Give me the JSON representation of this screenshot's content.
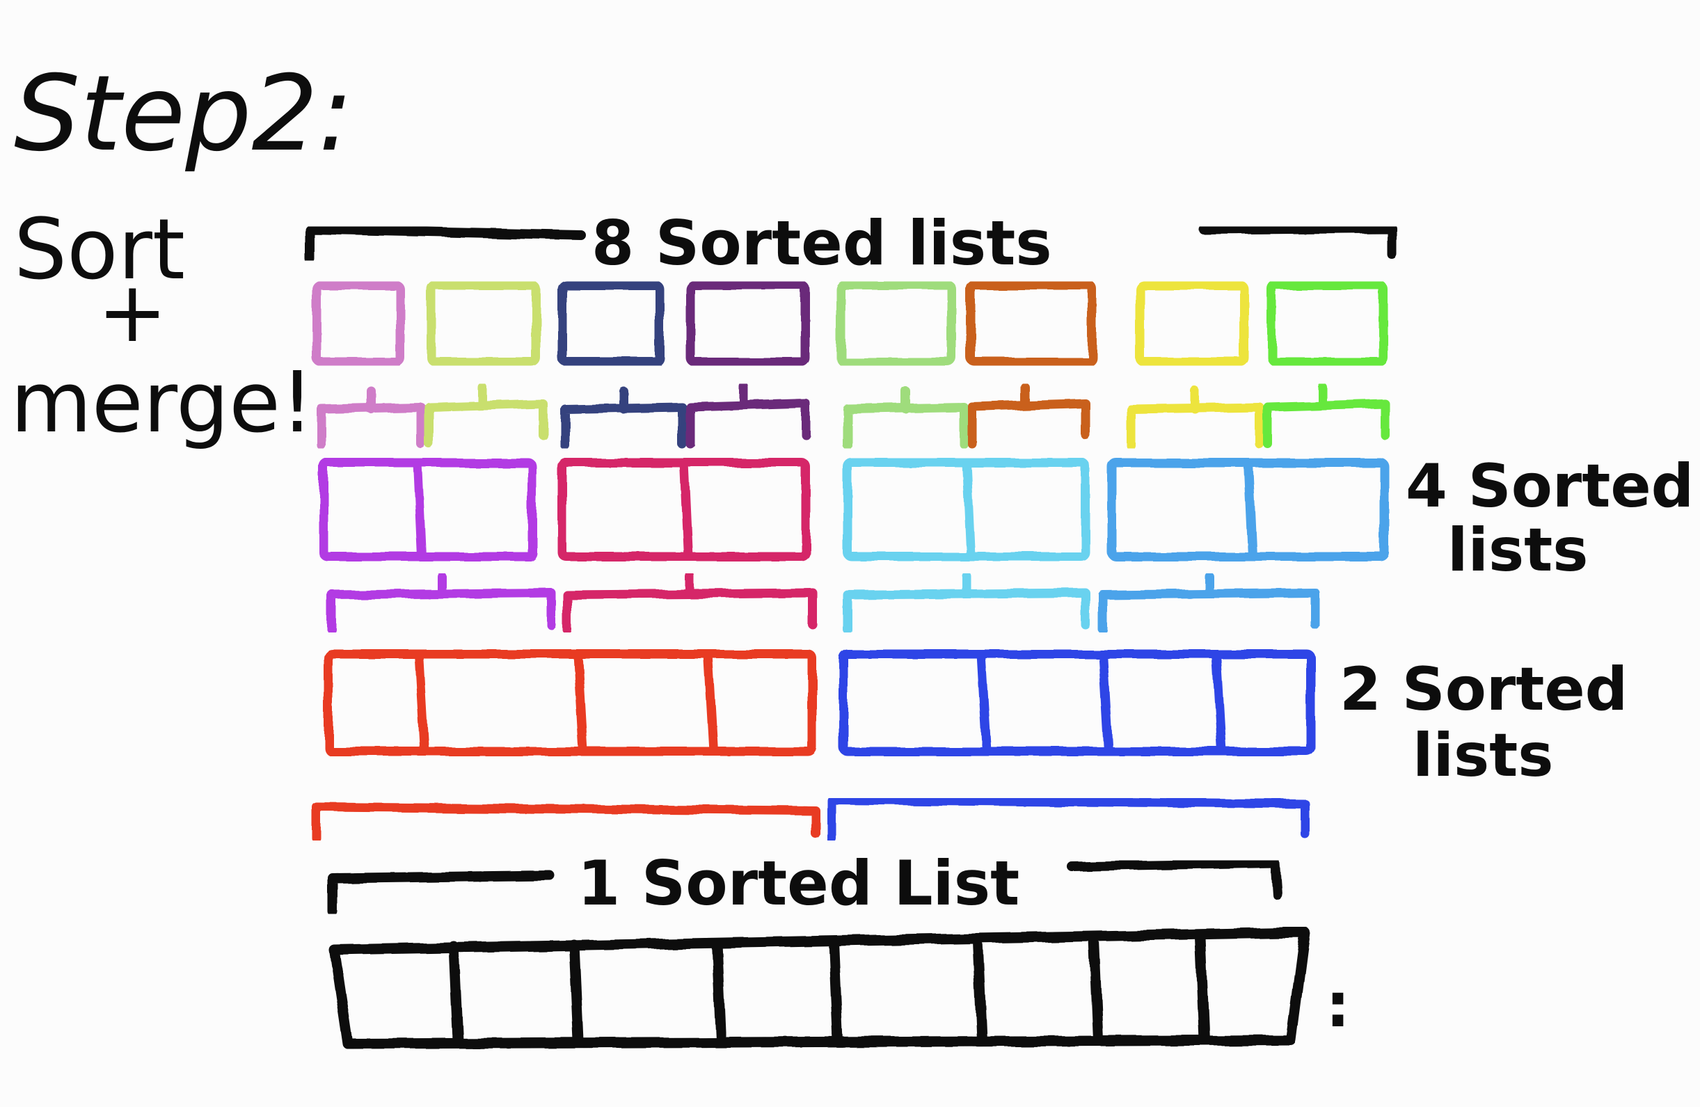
{
  "heading": {
    "step": "Step2:",
    "action_line1": "Sort",
    "action_line2": "+",
    "action_line3": "merge!"
  },
  "labels": {
    "eight": "8 Sorted lists",
    "four_line1": "4 Sorted",
    "four_line2": "lists",
    "two_line1": "2 Sorted",
    "two_line2": "lists",
    "one": "1 Sorted List",
    "ellipsis": ":"
  },
  "colors": {
    "ink": "#111111",
    "level8": [
      "#cf7dc8",
      "#c9df6e",
      "#34437e",
      "#6a2a7a",
      "#9fdc7c",
      "#c9611e",
      "#ede43c",
      "#66e83c"
    ],
    "level4": [
      "#b23be3",
      "#d52667",
      "#69d2ef",
      "#4ca3ea"
    ],
    "level2": [
      "#e83b24",
      "#2f45e6"
    ],
    "level1": "#111111"
  },
  "levels": {
    "eight_lists": 8,
    "four_lists": 4,
    "two_lists": 2,
    "one_list": 1
  }
}
